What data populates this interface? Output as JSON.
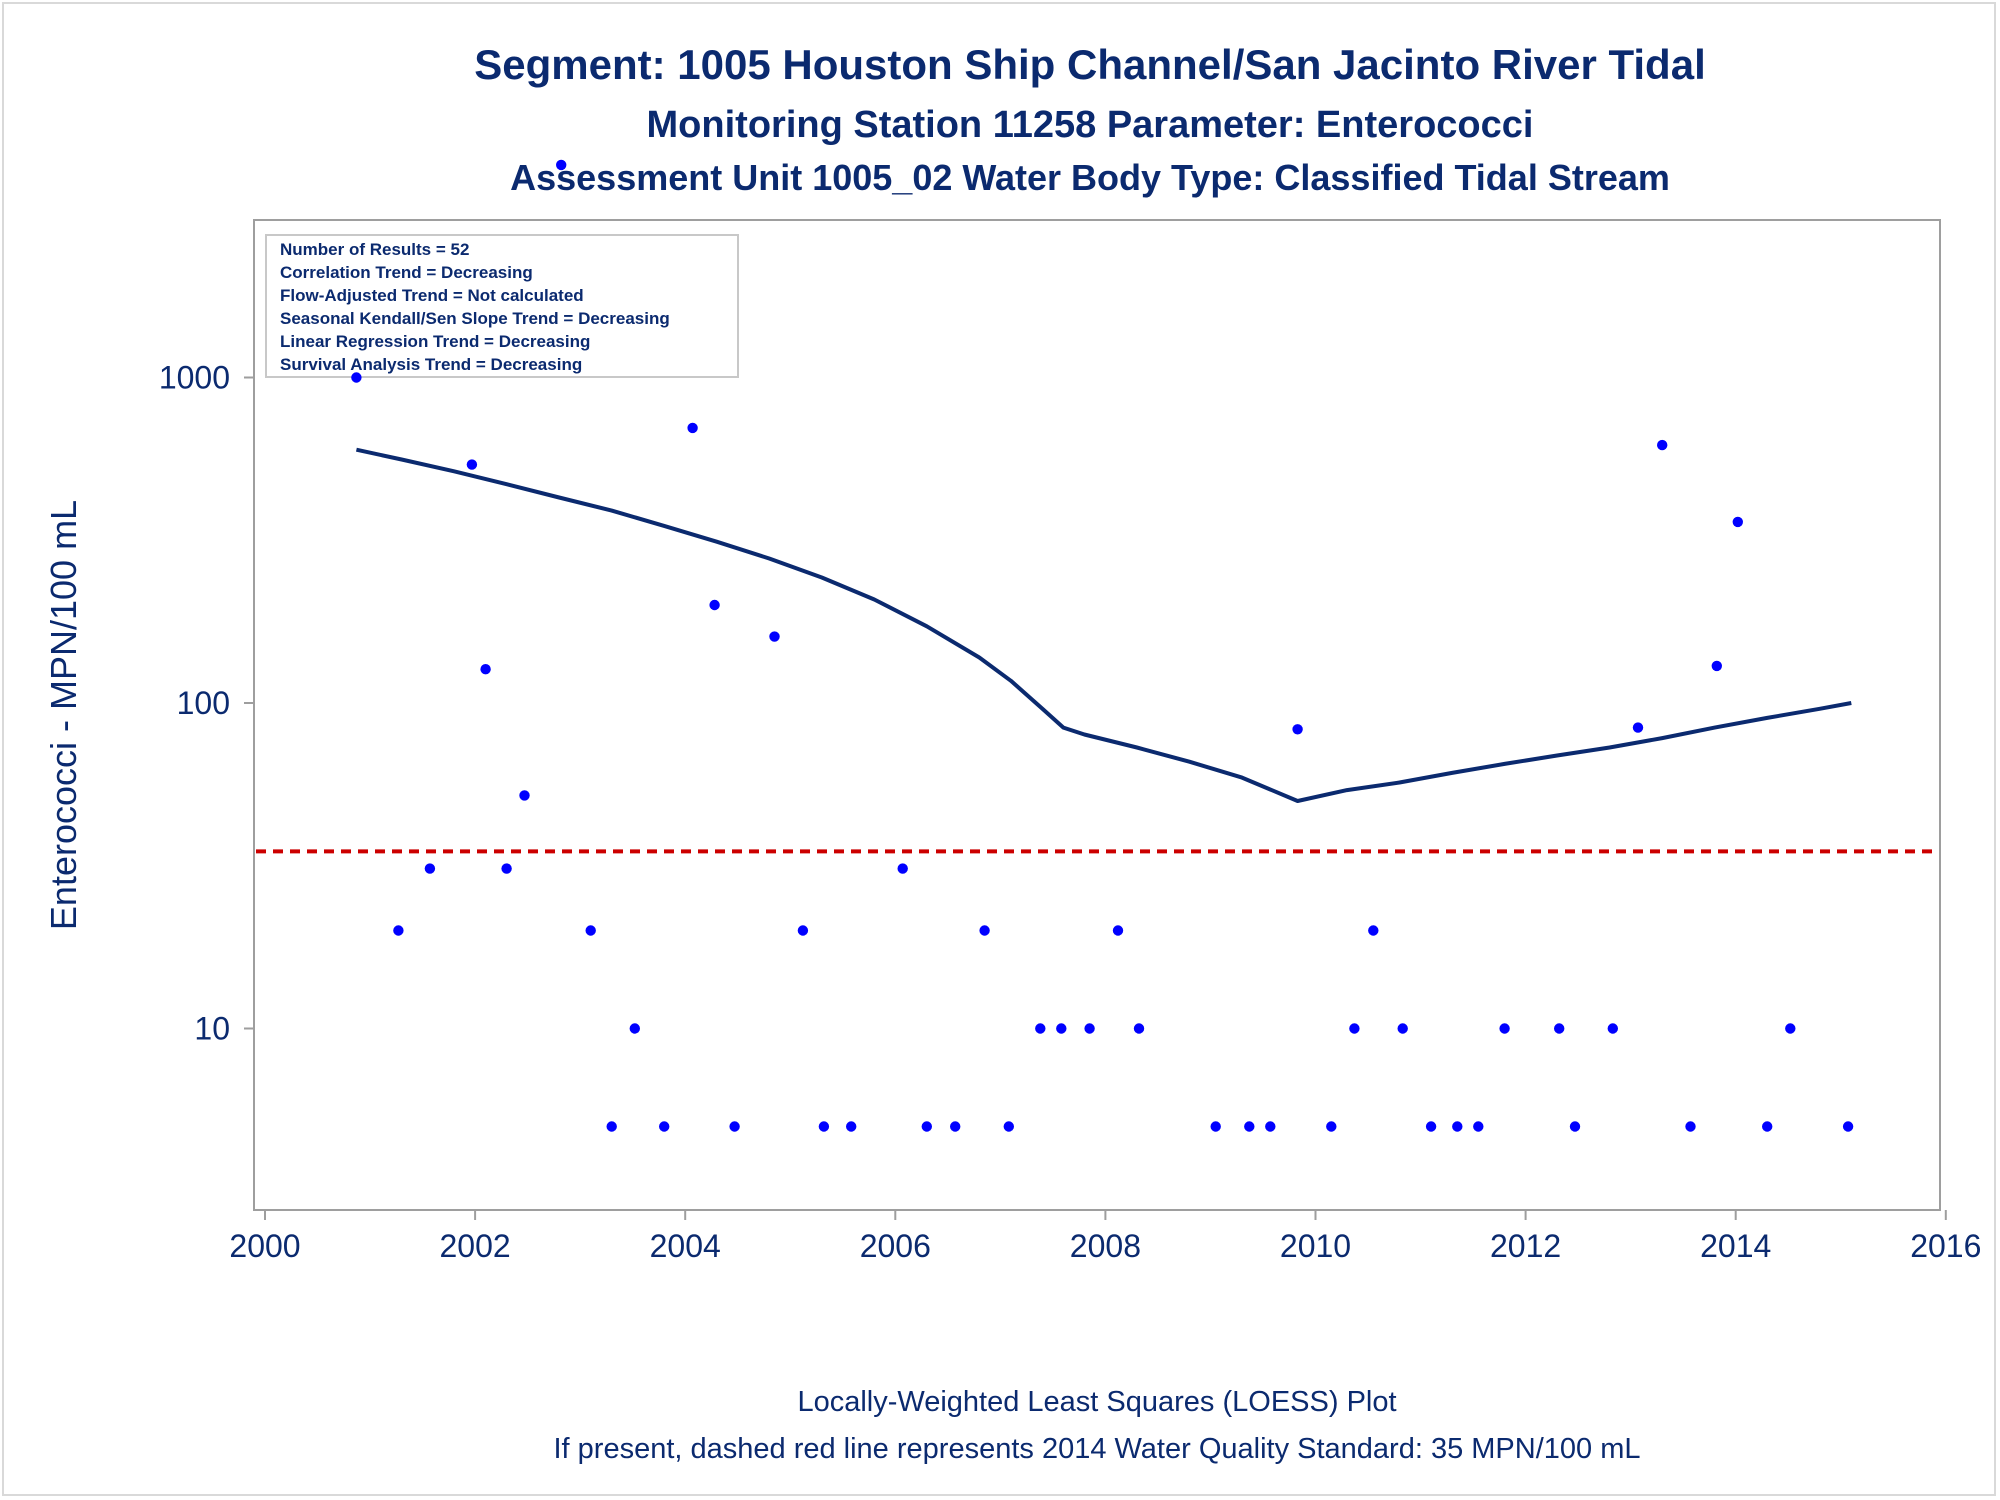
{
  "titles": {
    "line1": "Segment: 1005  Houston Ship Channel/San Jacinto River Tidal",
    "line2": "Monitoring Station 11258 Parameter: Enterococci",
    "line3": "Assessment Unit 1005_02   Water Body Type: Classified Tidal Stream"
  },
  "stats": [
    "Number of Results = 52",
    "Correlation Trend = Decreasing",
    "Flow-Adjusted Trend = Not calculated",
    "Seasonal Kendall/Sen Slope Trend = Decreasing",
    "Linear Regression Trend = Decreasing",
    "Survival Analysis Trend = Decreasing"
  ],
  "footer": {
    "line1": "Locally-Weighted Least Squares (LOESS) Plot",
    "line2": "If present, dashed red line represents 2014 Water Quality Standard: 35 MPN/100 mL"
  },
  "colors": {
    "text": "#0b2a6f",
    "points": "#0000ff",
    "loess": "#0b2a6f",
    "standard": "#cc0000",
    "axis": "#9e9e9e"
  },
  "chart_data": {
    "type": "scatter",
    "xlabel": "",
    "ylabel": "Enterococci - MPN/100 mL",
    "xlim": [
      2000,
      2016
    ],
    "xticks": [
      2000,
      2002,
      2004,
      2006,
      2008,
      2010,
      2012,
      2014,
      2016
    ],
    "yscale": "log",
    "yticks": [
      10,
      100,
      1000
    ],
    "ylim": [
      5,
      5000
    ],
    "grid": false,
    "points": [
      [
        2000.87,
        1000
      ],
      [
        2001.27,
        20
      ],
      [
        2001.57,
        31
      ],
      [
        2001.97,
        540
      ],
      [
        2002.1,
        127
      ],
      [
        2002.3,
        31
      ],
      [
        2002.47,
        52
      ],
      [
        2002.82,
        4500
      ],
      [
        2003.1,
        20
      ],
      [
        2003.3,
        5
      ],
      [
        2003.52,
        10
      ],
      [
        2003.8,
        5
      ],
      [
        2004.07,
        700
      ],
      [
        2004.28,
        200
      ],
      [
        2004.47,
        5
      ],
      [
        2004.85,
        160
      ],
      [
        2005.12,
        20
      ],
      [
        2005.32,
        5
      ],
      [
        2005.58,
        5
      ],
      [
        2006.07,
        31
      ],
      [
        2006.3,
        5
      ],
      [
        2006.57,
        5
      ],
      [
        2006.85,
        20
      ],
      [
        2007.08,
        5
      ],
      [
        2007.38,
        10
      ],
      [
        2007.58,
        10
      ],
      [
        2007.85,
        10
      ],
      [
        2008.12,
        20
      ],
      [
        2008.32,
        10
      ],
      [
        2009.05,
        5
      ],
      [
        2009.37,
        5
      ],
      [
        2009.57,
        5
      ],
      [
        2009.83,
        83
      ],
      [
        2010.15,
        5
      ],
      [
        2010.37,
        10
      ],
      [
        2010.55,
        20
      ],
      [
        2010.83,
        10
      ],
      [
        2011.1,
        5
      ],
      [
        2011.35,
        5
      ],
      [
        2011.55,
        5
      ],
      [
        2011.8,
        10
      ],
      [
        2012.32,
        10
      ],
      [
        2012.47,
        5
      ],
      [
        2012.83,
        10
      ],
      [
        2013.07,
        84
      ],
      [
        2013.3,
        620
      ],
      [
        2013.57,
        5
      ],
      [
        2013.82,
        130
      ],
      [
        2014.02,
        360
      ],
      [
        2014.3,
        5
      ],
      [
        2014.52,
        10
      ],
      [
        2015.07,
        5
      ]
    ],
    "loess": [
      [
        2000.87,
        600
      ],
      [
        2001.3,
        560
      ],
      [
        2001.8,
        515
      ],
      [
        2002.3,
        470
      ],
      [
        2002.8,
        428
      ],
      [
        2003.3,
        390
      ],
      [
        2003.8,
        350
      ],
      [
        2004.3,
        313
      ],
      [
        2004.8,
        278
      ],
      [
        2005.3,
        243
      ],
      [
        2005.8,
        208
      ],
      [
        2006.3,
        172
      ],
      [
        2006.8,
        138
      ],
      [
        2007.1,
        117
      ],
      [
        2007.4,
        96
      ],
      [
        2007.6,
        84
      ],
      [
        2007.8,
        80
      ],
      [
        2008.3,
        73
      ],
      [
        2008.8,
        66
      ],
      [
        2009.3,
        59
      ],
      [
        2009.83,
        50
      ],
      [
        2010.3,
        54
      ],
      [
        2010.8,
        57
      ],
      [
        2011.3,
        61
      ],
      [
        2011.8,
        65
      ],
      [
        2012.3,
        69
      ],
      [
        2012.8,
        73
      ],
      [
        2013.3,
        78
      ],
      [
        2013.8,
        84
      ],
      [
        2014.3,
        90
      ],
      [
        2014.8,
        96
      ],
      [
        2015.1,
        100
      ]
    ],
    "standard_value": 35
  }
}
